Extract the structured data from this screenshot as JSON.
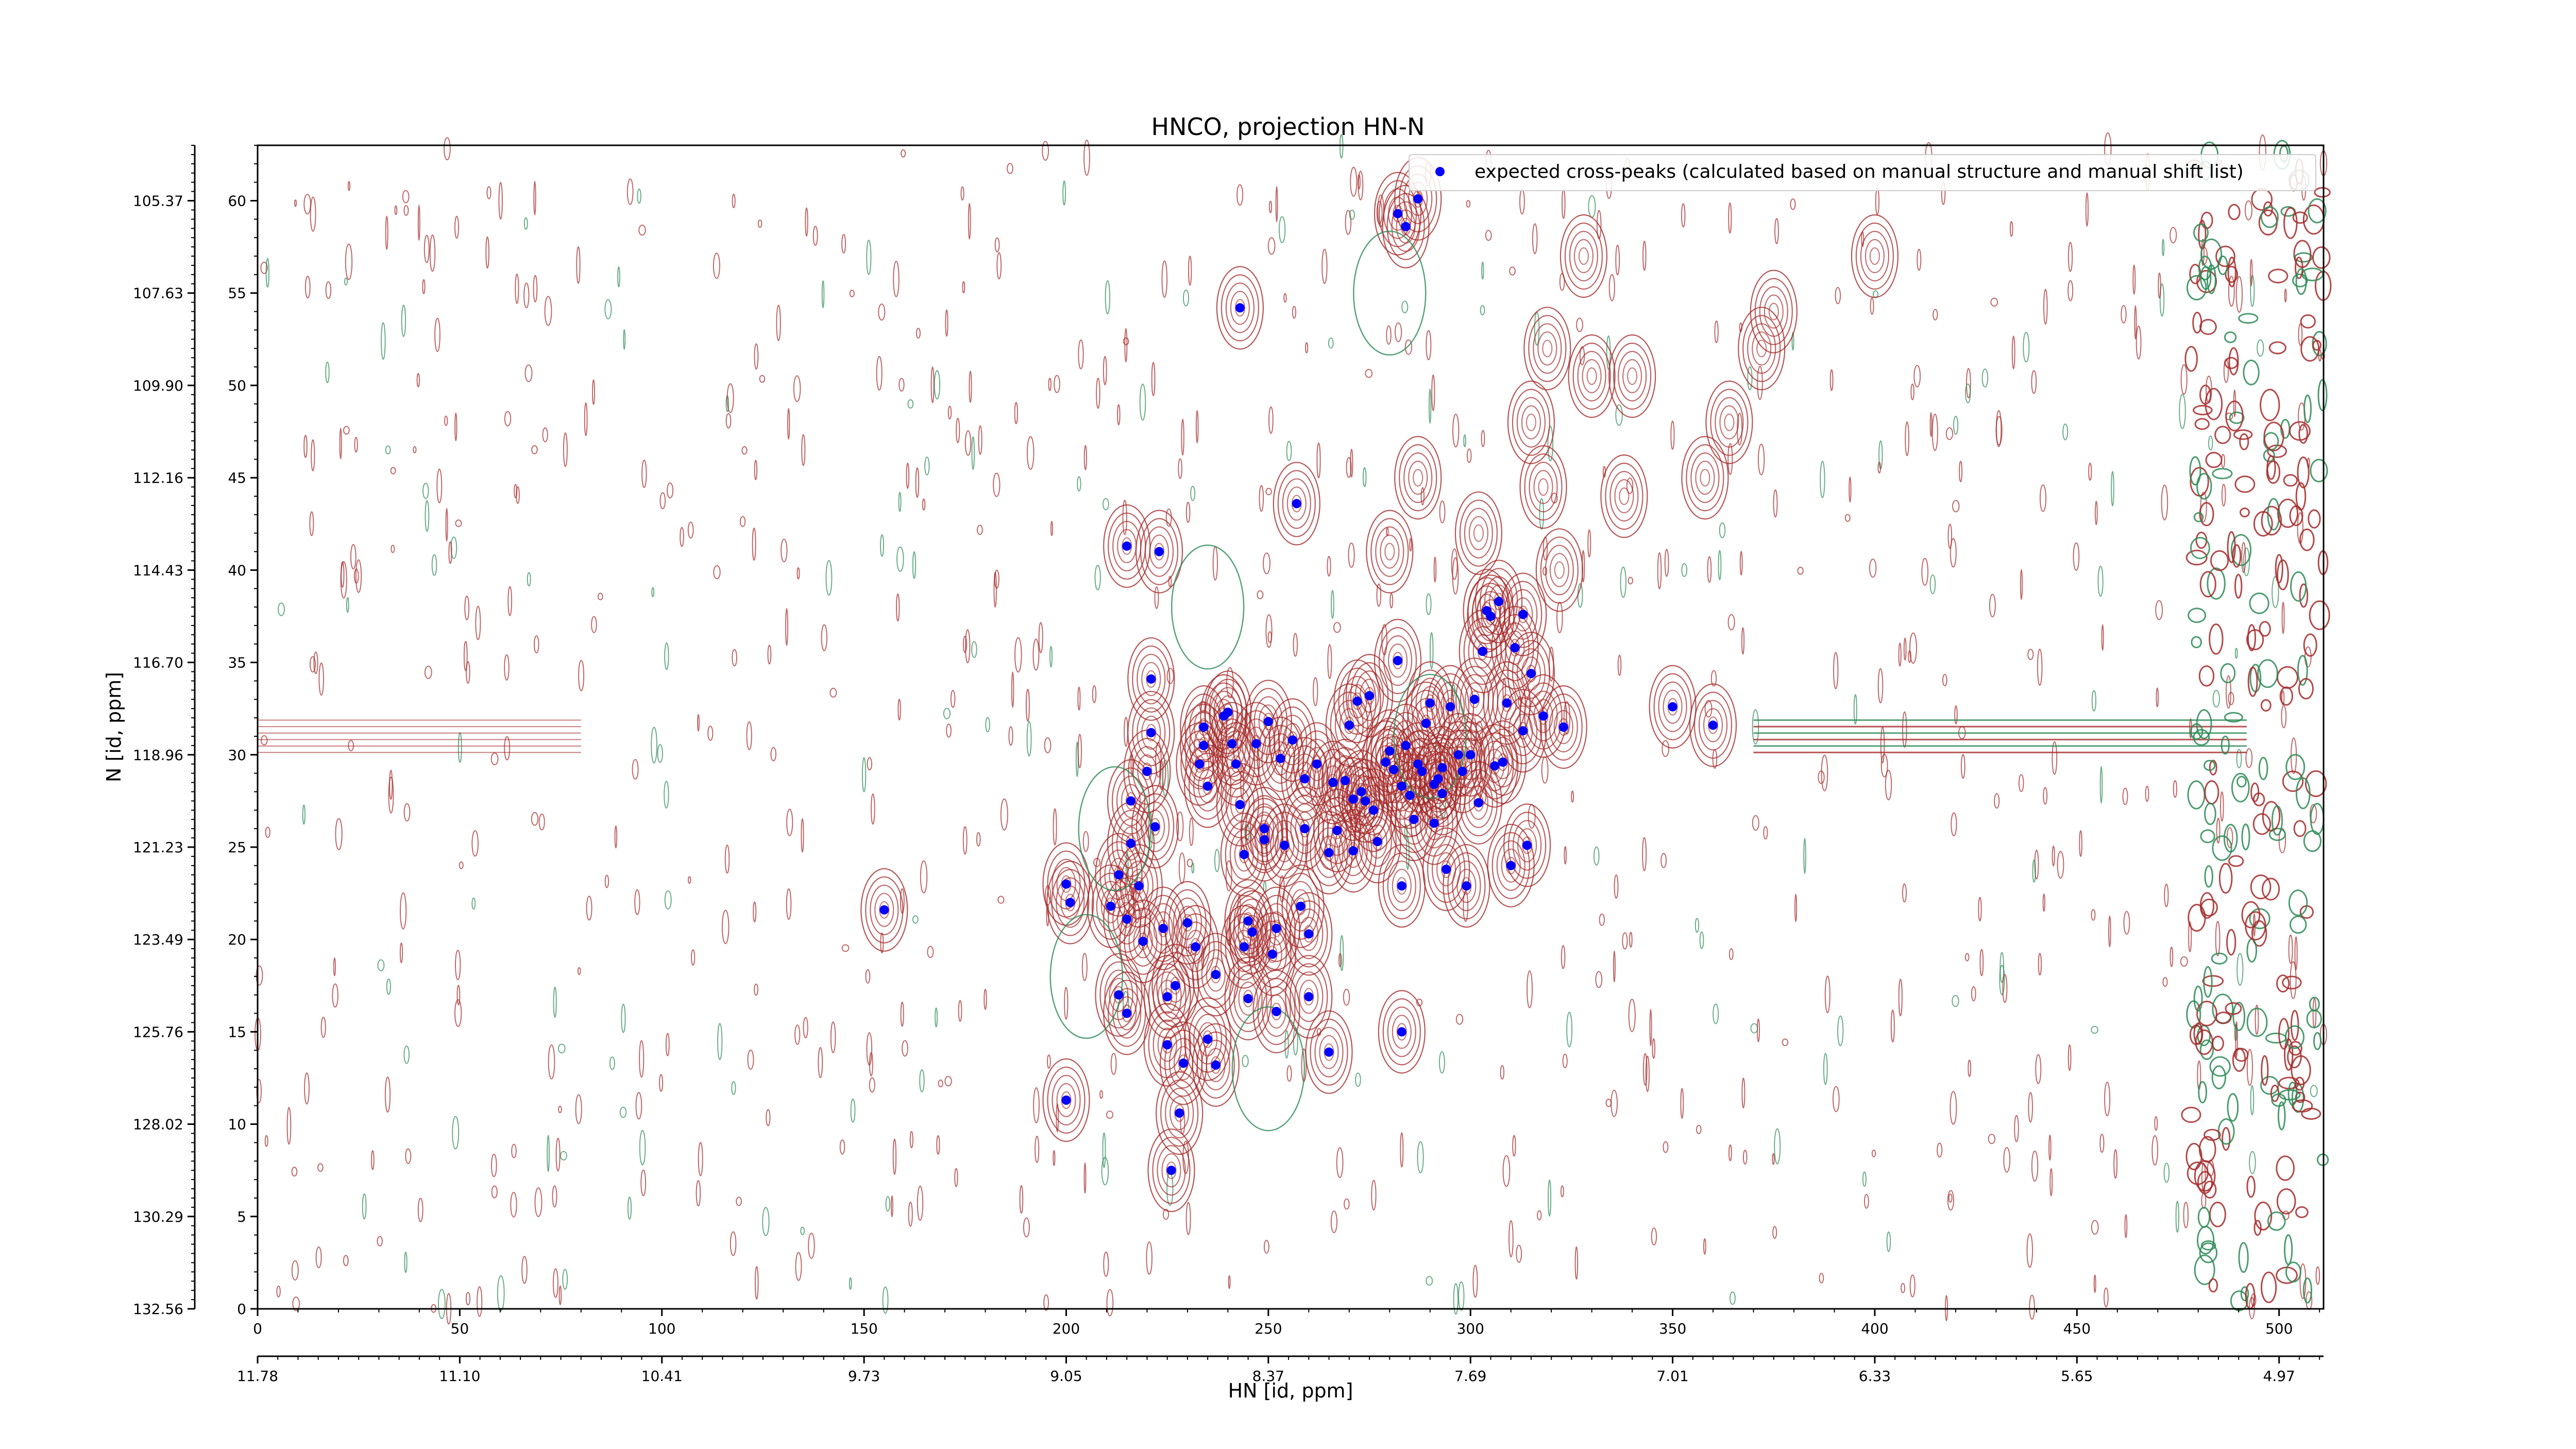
{
  "chart_data": {
    "type": "contour",
    "title": "HNCO, projection HN-N",
    "xlabel": "HN [id, ppm]",
    "ylabel": "N [id, ppm]",
    "xlim": [
      0,
      511
    ],
    "ylim": [
      0,
      63
    ],
    "x_ticks": [
      0,
      50,
      100,
      150,
      200,
      250,
      300,
      350,
      400,
      450,
      500
    ],
    "y_ticks": [
      0,
      5,
      10,
      15,
      20,
      25,
      30,
      35,
      40,
      45,
      50,
      55,
      60
    ],
    "x_ppm_ticks": [
      {
        "pos": 0,
        "label": "11.78"
      },
      {
        "pos": 50,
        "label": "11.10"
      },
      {
        "pos": 100,
        "label": "10.41"
      },
      {
        "pos": 150,
        "label": "9.73"
      },
      {
        "pos": 200,
        "label": "9.05"
      },
      {
        "pos": 250,
        "label": "8.37"
      },
      {
        "pos": 300,
        "label": "7.69"
      },
      {
        "pos": 350,
        "label": "7.01"
      },
      {
        "pos": 400,
        "label": "6.33"
      },
      {
        "pos": 450,
        "label": "5.65"
      },
      {
        "pos": 500,
        "label": "4.97"
      }
    ],
    "y_ppm_ticks": [
      {
        "pos": 0,
        "label": "132.56"
      },
      {
        "pos": 5,
        "label": "130.29"
      },
      {
        "pos": 10,
        "label": "128.02"
      },
      {
        "pos": 15,
        "label": "125.76"
      },
      {
        "pos": 20,
        "label": "123.49"
      },
      {
        "pos": 25,
        "label": "121.23"
      },
      {
        "pos": 30,
        "label": "118.96"
      },
      {
        "pos": 35,
        "label": "116.70"
      },
      {
        "pos": 40,
        "label": "114.43"
      },
      {
        "pos": 45,
        "label": "112.16"
      },
      {
        "pos": 50,
        "label": "109.90"
      },
      {
        "pos": 55,
        "label": "107.63"
      },
      {
        "pos": 60,
        "label": "105.37"
      }
    ],
    "legend": {
      "label": "expected cross-peaks (calculated based on manual structure and manual shift list)",
      "position": "upper right"
    },
    "colors": {
      "contour_positive": "#a52a2a",
      "contour_negative": "#2e8b57",
      "peak_marker": "#0000ff"
    },
    "series": [
      {
        "name": "expected cross-peaks (calculated based on manual structure and manual shift list)",
        "type": "scatter",
        "points": [
          [
            155,
            21.6
          ],
          [
            200,
            23
          ],
          [
            201,
            22
          ],
          [
            200,
            11.3
          ],
          [
            211,
            21.8
          ],
          [
            213,
            23.5
          ],
          [
            215,
            21.1
          ],
          [
            213,
            17
          ],
          [
            215,
            16
          ],
          [
            216,
            27.5
          ],
          [
            216,
            25.2
          ],
          [
            218,
            22.9
          ],
          [
            219,
            19.9
          ],
          [
            220,
            29.1
          ],
          [
            221,
            31.2
          ],
          [
            221,
            34.1
          ],
          [
            222,
            26.1
          ],
          [
            224,
            20.6
          ],
          [
            225,
            16.9
          ],
          [
            227,
            17.5
          ],
          [
            225,
            14.3
          ],
          [
            229,
            13.3
          ],
          [
            228,
            10.6
          ],
          [
            226,
            7.5
          ],
          [
            230,
            20.9
          ],
          [
            232,
            19.6
          ],
          [
            233,
            29.5
          ],
          [
            234,
            30.5
          ],
          [
            234,
            31.5
          ],
          [
            235,
            28.3
          ],
          [
            235,
            14.6
          ],
          [
            237,
            18.1
          ],
          [
            237,
            13.2
          ],
          [
            239,
            32.1
          ],
          [
            240,
            32.3
          ],
          [
            241,
            30.6
          ],
          [
            242,
            29.5
          ],
          [
            243,
            27.3
          ],
          [
            244,
            24.6
          ],
          [
            244,
            19.6
          ],
          [
            245,
            21
          ],
          [
            245,
            16.8
          ],
          [
            246,
            20.4
          ],
          [
            247,
            30.6
          ],
          [
            249,
            25.4
          ],
          [
            249,
            26
          ],
          [
            250,
            31.8
          ],
          [
            251,
            19.2
          ],
          [
            252,
            20.6
          ],
          [
            252,
            16.1
          ],
          [
            253,
            29.8
          ],
          [
            254,
            25.1
          ],
          [
            256,
            30.8
          ],
          [
            258,
            21.8
          ],
          [
            259,
            28.7
          ],
          [
            259,
            26
          ],
          [
            260,
            20.3
          ],
          [
            260,
            16.9
          ],
          [
            262,
            29.5
          ],
          [
            265,
            24.7
          ],
          [
            265,
            13.9
          ],
          [
            266,
            28.5
          ],
          [
            267,
            25.9
          ],
          [
            269,
            28.6
          ],
          [
            270,
            31.6
          ],
          [
            271,
            27.6
          ],
          [
            271,
            24.8
          ],
          [
            272,
            32.9
          ],
          [
            273,
            28
          ],
          [
            274,
            27.5
          ],
          [
            275,
            33.2
          ],
          [
            276,
            27
          ],
          [
            277,
            25.3
          ],
          [
            279,
            29.6
          ],
          [
            280,
            30.2
          ],
          [
            281,
            29.2
          ],
          [
            282,
            35.1
          ],
          [
            283,
            28.3
          ],
          [
            283,
            22.9
          ],
          [
            283,
            15
          ],
          [
            284,
            30.5
          ],
          [
            285,
            27.8
          ],
          [
            286,
            26.5
          ],
          [
            287,
            29.5
          ],
          [
            288,
            29.1
          ],
          [
            289,
            31.7
          ],
          [
            290,
            32.8
          ],
          [
            291,
            28.4
          ],
          [
            291,
            26.3
          ],
          [
            292,
            28.7
          ],
          [
            293,
            29.3
          ],
          [
            293,
            27.9
          ],
          [
            294,
            23.8
          ],
          [
            295,
            32.6
          ],
          [
            297,
            30
          ],
          [
            298,
            29.1
          ],
          [
            299,
            22.9
          ],
          [
            300,
            30
          ],
          [
            301,
            33
          ],
          [
            302,
            27.4
          ],
          [
            303,
            35.6
          ],
          [
            305,
            37.5
          ],
          [
            306,
            29.4
          ],
          [
            307,
            38.3
          ],
          [
            308,
            29.6
          ],
          [
            309,
            32.8
          ],
          [
            310,
            24
          ],
          [
            311,
            35.8
          ],
          [
            313,
            37.6
          ],
          [
            313,
            31.3
          ],
          [
            314,
            25.1
          ],
          [
            315,
            34.4
          ],
          [
            323,
            31.5
          ],
          [
            350,
            32.6
          ],
          [
            360,
            31.6
          ],
          [
            304,
            37.8
          ],
          [
            318,
            32.1
          ],
          [
            215,
            41.3
          ],
          [
            223,
            41
          ],
          [
            257,
            43.6
          ],
          [
            243,
            54.2
          ],
          [
            282,
            59.3
          ],
          [
            284,
            58.6
          ],
          [
            287,
            60.1
          ]
        ]
      }
    ]
  }
}
